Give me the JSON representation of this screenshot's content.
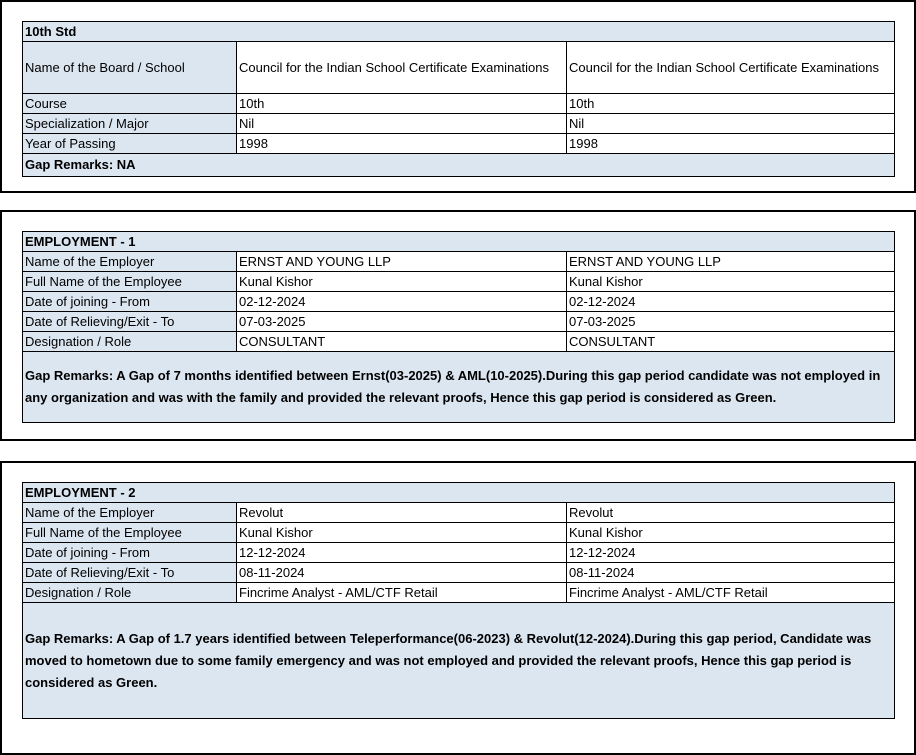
{
  "education": {
    "title": "10th Std",
    "rows": [
      {
        "label": "Name of the Board / School",
        "value1": "Council for the Indian School Certificate Examinations",
        "value2": "Council for the Indian School Certificate Examinations"
      },
      {
        "label": "Course",
        "value1": "10th",
        "value2": "10th"
      },
      {
        "label": "Specialization / Major",
        "value1": "Nil",
        "value2": "Nil"
      },
      {
        "label": "Year of Passing",
        "value1": "1998",
        "value2": "1998"
      }
    ],
    "gap_remarks": "Gap Remarks: NA"
  },
  "employment1": {
    "title": "EMPLOYMENT - 1",
    "rows": [
      {
        "label": "Name of the Employer",
        "value1": "ERNST AND YOUNG LLP",
        "value2": "ERNST AND YOUNG LLP"
      },
      {
        "label": "Full Name of the Employee",
        "value1": "Kunal Kishor",
        "value2": "Kunal Kishor"
      },
      {
        "label": "Date of joining - From",
        "value1": "02-12-2024",
        "value2": "02-12-2024"
      },
      {
        "label": "Date of Relieving/Exit - To",
        "value1": "07-03-2025",
        "value2": "07-03-2025"
      },
      {
        "label": "Designation / Role",
        "value1": "CONSULTANT",
        "value2": "CONSULTANT"
      }
    ],
    "gap_remarks": "Gap Remarks: A Gap of 7 months identified between Ernst(03-2025) & AML(10-2025).During this gap period candidate was not employed in any organization and was with the family and provided the relevant proofs, Hence this gap period is considered as Green."
  },
  "employment2": {
    "title": "EMPLOYMENT - 2",
    "rows": [
      {
        "label": "Name of the Employer",
        "value1": "Revolut",
        "value2": "Revolut"
      },
      {
        "label": "Full Name of the Employee",
        "value1": "Kunal Kishor",
        "value2": "Kunal Kishor"
      },
      {
        "label": "Date of joining - From",
        "value1": "12-12-2024",
        "value2": "12-12-2024"
      },
      {
        "label": "Date of Relieving/Exit - To",
        "value1": "08-11-2024",
        "value2": "08-11-2024"
      },
      {
        "label": "Designation / Role",
        "value1": "Fincrime Analyst - AML/CTF Retail",
        "value2": "Fincrime Analyst - AML/CTF Retail"
      }
    ],
    "gap_remarks": "Gap Remarks: A Gap of 1.7 years identified between Teleperformance(06-2023) & Revolut(12-2024).During this gap period, Candidate was moved to hometown due to some family emergency and was not employed and provided the relevant proofs, Hence this gap period is considered as Green."
  }
}
